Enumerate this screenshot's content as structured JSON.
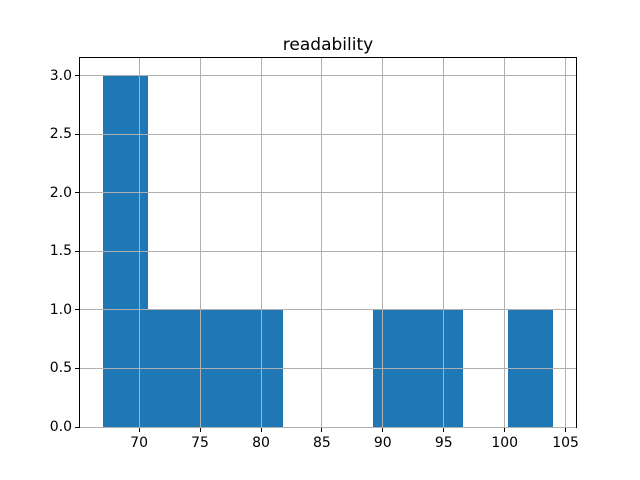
{
  "chart_data": {
    "type": "histogram",
    "title": "readability",
    "xlabel": "",
    "ylabel": "",
    "bin_edges": [
      67.0,
      70.7,
      74.4,
      78.1,
      81.8,
      85.5,
      89.2,
      92.9,
      96.6,
      100.3,
      104.0
    ],
    "counts": [
      3,
      1,
      1,
      1,
      0,
      0,
      1,
      1,
      0,
      1
    ],
    "xticks": {
      "values": [
        70,
        75,
        80,
        85,
        90,
        95,
        100,
        105
      ],
      "labels": [
        "70",
        "75",
        "80",
        "85",
        "90",
        "95",
        "100",
        "105"
      ]
    },
    "yticks": {
      "values": [
        0,
        0.5,
        1,
        1.5,
        2,
        2.5,
        3
      ],
      "labels": [
        "0.0",
        "0.5",
        "1.0",
        "1.5",
        "2.0",
        "2.5",
        "3.0"
      ]
    },
    "xlim": [
      65.15,
      105.85
    ],
    "ylim": [
      0,
      3.15
    ],
    "grid": true,
    "grid_over_bars": true,
    "legend": false,
    "colors": {
      "bar": "#1f77b4",
      "grid": "#b0b0b0",
      "spine": "#000000",
      "text": "#000000",
      "background": "#ffffff"
    }
  }
}
